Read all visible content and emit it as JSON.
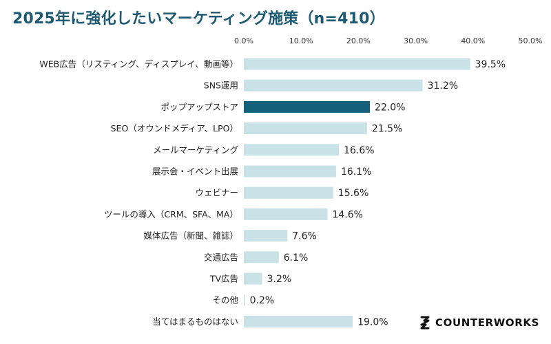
{
  "chart_data": {
    "type": "bar",
    "orientation": "horizontal",
    "title": "2025年に強化したいマーケティング施策（n=410）",
    "categories": [
      "WEB広告（リスティング、ディスプレイ、動画等）",
      "SNS運用",
      "ポップアップストア",
      "SEO（オウンドメディア、LPO）",
      "メールマーケティング",
      "展示会・イベント出展",
      "ウェビナー",
      "ツールの導入（CRM、SFA、MA）",
      "媒体広告（新聞、雑誌）",
      "交通広告",
      "TV広告",
      "その他",
      "当てはまるものはない"
    ],
    "values": [
      39.5,
      31.2,
      22.0,
      21.5,
      16.6,
      16.1,
      15.6,
      14.6,
      7.6,
      6.1,
      3.2,
      0.2,
      19.0
    ],
    "value_labels": [
      "39.5%",
      "31.2%",
      "22.0%",
      "21.5%",
      "16.6%",
      "16.1%",
      "15.6%",
      "14.6%",
      "7.6%",
      "6.1%",
      "3.2%",
      "0.2%",
      "19.0%"
    ],
    "xlim": [
      0,
      50
    ],
    "tick_labels": [
      "0.0%",
      "10.0%",
      "20.0%",
      "30.0%",
      "40.0%",
      "50.0%"
    ],
    "tick_values": [
      0,
      10,
      20,
      30,
      40,
      50
    ],
    "grid": false,
    "highlight_index": 2,
    "colors": {
      "bar": "#c9e2e7",
      "highlight": "#14607a",
      "title": "#1b5a72"
    }
  },
  "brand": {
    "name": "COUNTERWORKS",
    "icon": "counterworks-logo-icon"
  }
}
